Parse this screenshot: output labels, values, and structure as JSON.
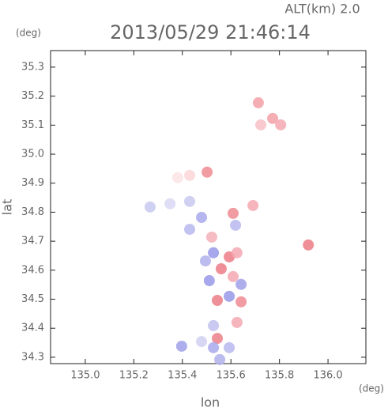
{
  "chart_data": {
    "type": "scatter",
    "header": "ALT(km) 2.0",
    "title": "2013/05/29 21:46:14",
    "y_unit": "(deg)",
    "x_unit": "(deg)",
    "xlabel": "lon",
    "ylabel": "lat",
    "xlim": [
      134.857,
      136.156
    ],
    "ylim": [
      34.278,
      35.357
    ],
    "xticks": [
      {
        "value": 135.0,
        "label": "135.0"
      },
      135.2,
      135.4,
      135.6,
      135.8,
      {
        "value": 136.0,
        "label": "136.0"
      }
    ],
    "yticks": [
      34.3,
      34.4,
      34.5,
      34.6,
      34.7,
      34.8,
      34.9,
      {
        "value": 35.0,
        "label": "35.0"
      },
      35.1,
      35.2,
      35.3
    ],
    "x": [
      135.713,
      135.772,
      135.805,
      135.723,
      135.43,
      135.381,
      135.502,
      135.349,
      135.267,
      135.43,
      135.479,
      135.43,
      135.609,
      135.691,
      135.619,
      135.521,
      135.528,
      135.593,
      135.625,
      135.495,
      135.56,
      135.511,
      135.609,
      135.642,
      135.544,
      135.642,
      135.593,
      135.919,
      135.625,
      135.528,
      135.544,
      135.479,
      135.528,
      135.593,
      135.397,
      135.554
    ],
    "y": [
      35.177,
      35.123,
      35.101,
      35.101,
      34.927,
      34.919,
      34.938,
      34.829,
      34.818,
      34.837,
      34.782,
      34.741,
      34.796,
      34.823,
      34.755,
      34.714,
      34.66,
      34.646,
      34.66,
      34.632,
      34.605,
      34.564,
      34.578,
      34.551,
      34.496,
      34.491,
      34.51,
      34.687,
      34.42,
      34.409,
      34.365,
      34.354,
      34.333,
      34.333,
      34.338,
      34.292
    ],
    "colors": [
      "#f4a0a8",
      "#f4a0a8",
      "#f4a8b0",
      "#f7c0c5",
      "#fbd6d8",
      "#fce4e4",
      "#ee8a92",
      "#d8d8f4",
      "#c8c8f0",
      "#c8c8f0",
      "#a8a8ec",
      "#b8b8ee",
      "#ee8a92",
      "#f4a8b0",
      "#b8b8ee",
      "#f4b0b8",
      "#9898e8",
      "#ec7c86",
      "#f4a8b0",
      "#b0b0ec",
      "#ec7c86",
      "#9898e8",
      "#f4a8b0",
      "#a0a0ea",
      "#ec7c86",
      "#ee8a92",
      "#9898e8",
      "#ec7c86",
      "#f4a8b0",
      "#c0c0ee",
      "#ec8088",
      "#d0d0f2",
      "#a8a8ec",
      "#b8b8ee",
      "#a0a0ea",
      "#b0b0ec"
    ]
  }
}
